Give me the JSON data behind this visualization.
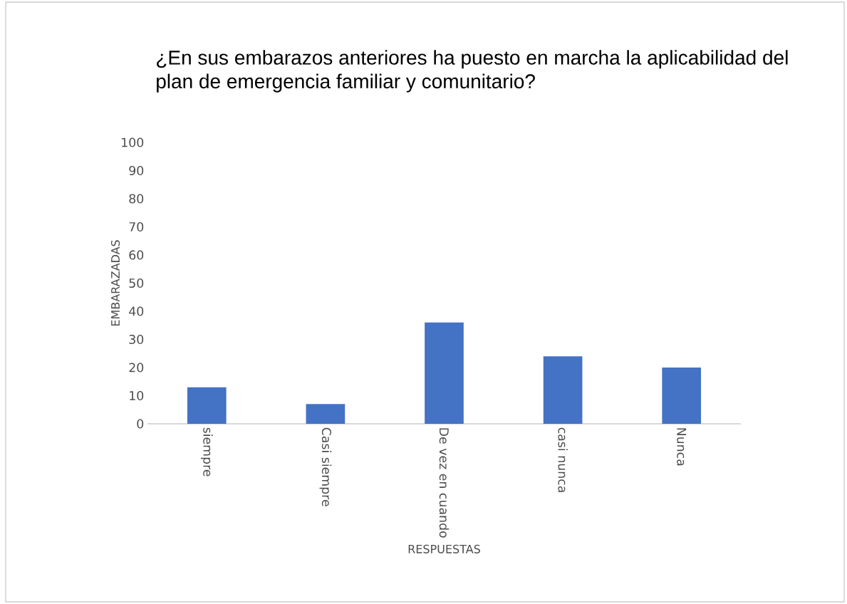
{
  "chart_data": {
    "type": "bar",
    "title": "¿En sus embarazos anteriores ha puesto en marcha la aplicabilidad del plan de emergencia familiar y comunitario?",
    "xlabel": "RESPUESTAS",
    "ylabel": "EMBARAZADAS",
    "categories": [
      "siempre",
      "Casi siempre",
      "De vez en cuando",
      "casi nunca",
      "Nunca"
    ],
    "values": [
      13,
      7,
      36,
      24,
      20
    ],
    "color": "#4472c4",
    "ylim": [
      0,
      100
    ],
    "yticks": [
      0,
      10,
      20,
      30,
      40,
      50,
      60,
      70,
      80,
      90,
      100
    ]
  }
}
